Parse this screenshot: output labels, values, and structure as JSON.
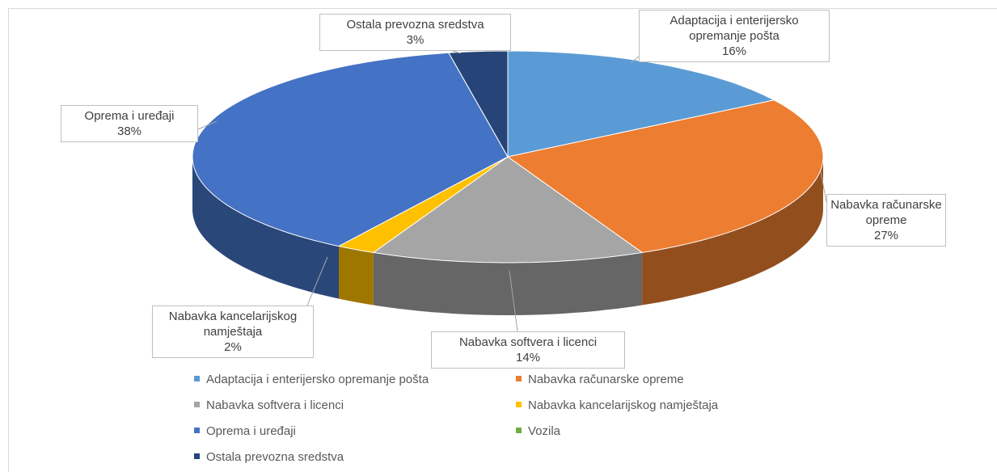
{
  "chart_data": {
    "type": "pie3d",
    "categories": [
      "Adaptacija i enterijersko opremanje pošta",
      "Nabavka računarske opreme",
      "Nabavka softvera i licenci",
      "Nabavka kancelarijskog namještaja",
      "Oprema i uređaji",
      "Vozila",
      "Ostala prevozna sredstva"
    ],
    "values": [
      16,
      27,
      14,
      2,
      38,
      0,
      3
    ],
    "value_labels": [
      "16%",
      "27%",
      "14%",
      "2%",
      "38%",
      null,
      "3%"
    ],
    "colors": [
      "#5b9bd5",
      "#ed7d31",
      "#a5a5a5",
      "#ffc000",
      "#4472c4",
      "#70ad47",
      "#264478"
    ],
    "legend": "bottom"
  }
}
